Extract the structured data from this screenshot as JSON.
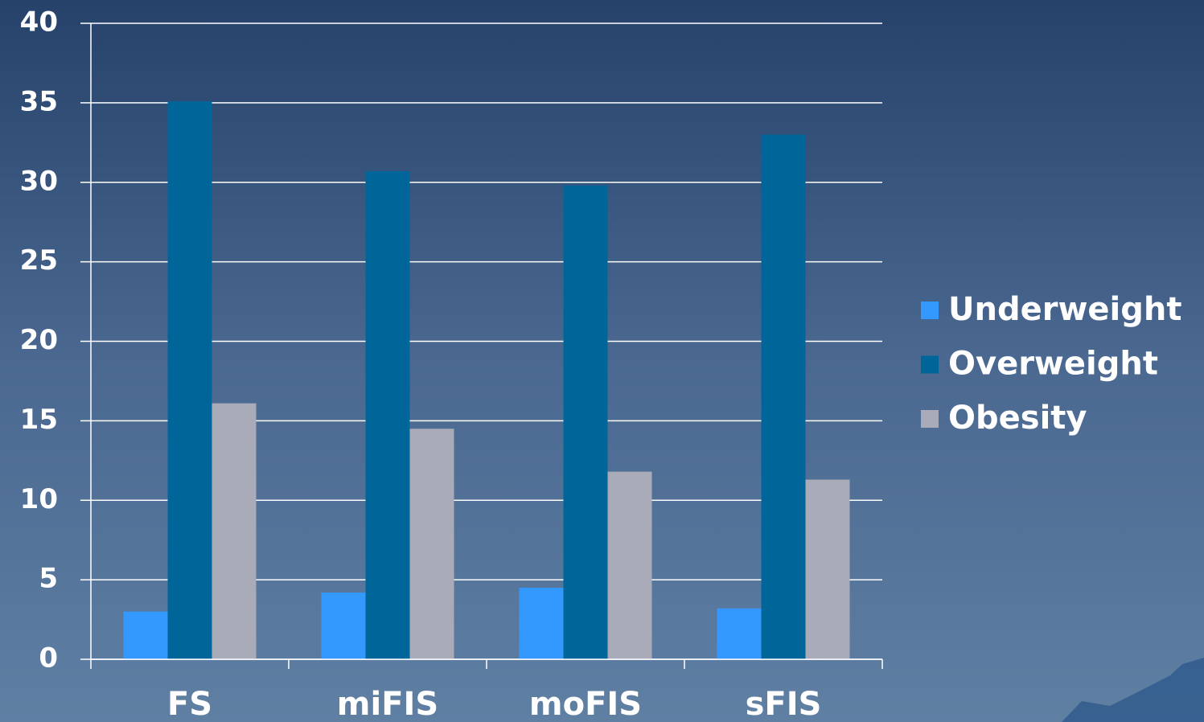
{
  "chart_data": {
    "type": "bar",
    "categories": [
      "FS",
      "miFIS",
      "moFIS",
      "sFIS"
    ],
    "series": [
      {
        "name": "Underweight",
        "color": "#3399ff",
        "values": [
          3.0,
          4.2,
          4.5,
          3.2
        ]
      },
      {
        "name": "Overweight",
        "color": "#006699",
        "values": [
          35.1,
          30.7,
          29.8,
          33.0
        ]
      },
      {
        "name": "Obesity",
        "color": "#a9acb8",
        "values": [
          16.1,
          14.5,
          11.8,
          11.3
        ]
      }
    ],
    "ylim": [
      0,
      40
    ],
    "yticks": [
      0,
      5,
      10,
      15,
      20,
      25,
      30,
      35,
      40
    ],
    "grid": true,
    "legend": "right"
  }
}
